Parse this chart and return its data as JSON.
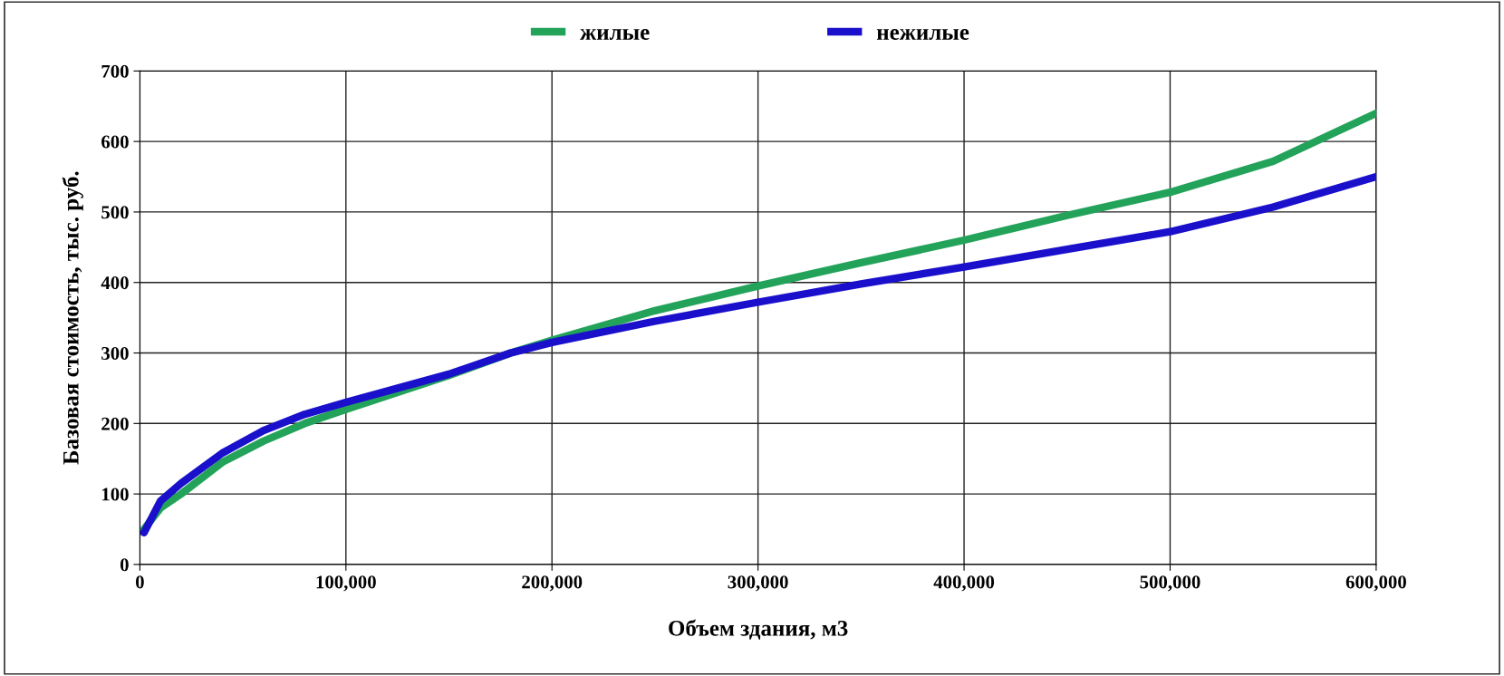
{
  "chart_data": {
    "type": "line",
    "xlabel": "Объем здания, м3",
    "ylabel": "Базовая стоимость, тыс. руб.",
    "xlim": [
      0,
      600000
    ],
    "ylim": [
      0,
      700
    ],
    "xticks": [
      {
        "value": 0,
        "label": "0"
      },
      {
        "value": 100000,
        "label": "100,000"
      },
      {
        "value": 200000,
        "label": "200,000"
      },
      {
        "value": 300000,
        "label": "300,000"
      },
      {
        "value": 400000,
        "label": "400,000"
      },
      {
        "value": 500000,
        "label": "500,000"
      },
      {
        "value": 600000,
        "label": "600,000"
      }
    ],
    "yticks": [
      0,
      100,
      200,
      300,
      400,
      500,
      600,
      700
    ],
    "x": [
      2000,
      10000,
      20000,
      40000,
      60000,
      80000,
      100000,
      150000,
      180000,
      200000,
      250000,
      300000,
      350000,
      400000,
      450000,
      500000,
      550000,
      600000
    ],
    "series": [
      {
        "name": "жилые",
        "color": "#23a35a",
        "values": [
          50,
          80,
          100,
          145,
          175,
          200,
          220,
          268,
          300,
          318,
          360,
          395,
          428,
          460,
          495,
          528,
          572,
          640
        ]
      },
      {
        "name": "нежилые",
        "color": "#1a10cc",
        "values": [
          45,
          90,
          115,
          158,
          190,
          213,
          230,
          270,
          300,
          315,
          345,
          372,
          398,
          422,
          447,
          472,
          507,
          550
        ]
      }
    ],
    "grid": true,
    "legend": "top",
    "marker": "none",
    "line_style": "solid"
  }
}
